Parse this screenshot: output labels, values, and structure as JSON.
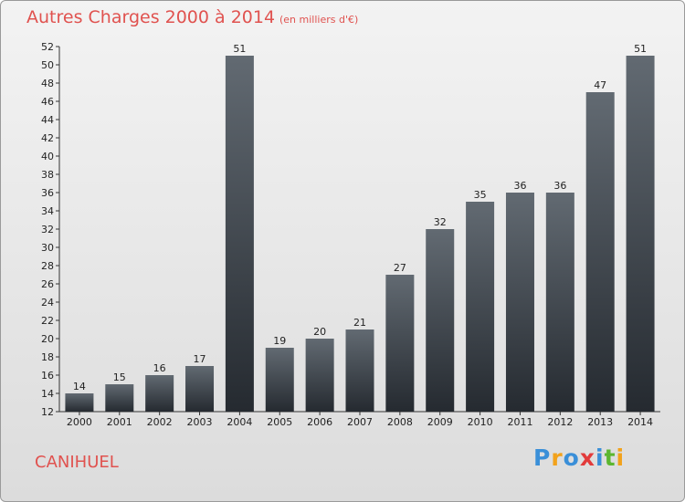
{
  "chart_data": {
    "type": "bar",
    "title": "Autres Charges 2000 à 2014",
    "subtitle": "(en milliers d'€)",
    "categories": [
      "2000",
      "2001",
      "2002",
      "2003",
      "2004",
      "2005",
      "2006",
      "2007",
      "2008",
      "2009",
      "2010",
      "2011",
      "2012",
      "2013",
      "2014"
    ],
    "values": [
      14,
      15,
      16,
      17,
      51,
      19,
      20,
      21,
      27,
      32,
      35,
      36,
      36,
      47,
      51
    ],
    "ylim": [
      12,
      52
    ],
    "ytick_step": 2,
    "grid": false,
    "bar_color_top": "#626a72",
    "bar_color_bottom": "#252a30"
  },
  "location": "CANIHUEL",
  "logo": {
    "letters": [
      "P",
      "r",
      "o",
      "x",
      "i",
      "t",
      "i"
    ],
    "colors": [
      "#3a8fd8",
      "#f2a21b",
      "#3a8fd8",
      "#e23b3b",
      "#3a8fd8",
      "#5cb630",
      "#f2a21b"
    ]
  },
  "theme": {
    "accent": "#e0524f"
  }
}
